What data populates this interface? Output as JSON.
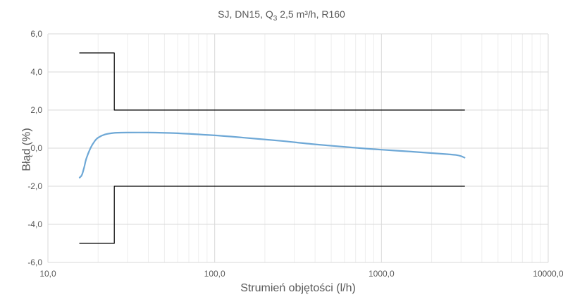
{
  "chart_data": {
    "type": "line",
    "title_main": "SJ, DN15, Q",
    "title_sub": "3",
    "title_rest": " 2,5 m³/h, R160",
    "xlabel": "Strumień objętości (l/h)",
    "ylabel": "Błąd (%)",
    "x_scale": "log",
    "xlim": [
      10,
      10000
    ],
    "ylim": [
      -6,
      6
    ],
    "x_ticks": [
      10,
      100,
      1000,
      10000
    ],
    "x_tick_labels": [
      "10,0",
      "100,0",
      "1000,0",
      "10000,0"
    ],
    "y_ticks": [
      6,
      4,
      2,
      0,
      -2,
      -4,
      -6
    ],
    "y_tick_labels": [
      "6,0",
      "4,0",
      "2,0",
      "0,0",
      "-2,0",
      "-4,0",
      "-6,0"
    ],
    "grid": true,
    "series": [
      {
        "color": "#6ea8d6",
        "x": [
          15.5,
          16,
          16.5,
          17,
          18,
          19,
          20,
          22,
          25,
          30,
          40,
          60,
          100,
          150,
          250,
          400,
          700,
          1000,
          1500,
          2000,
          2500,
          2800,
          3000,
          3150
        ],
        "y": [
          -1.55,
          -1.4,
          -1.0,
          -0.55,
          0.0,
          0.35,
          0.55,
          0.72,
          0.8,
          0.82,
          0.82,
          0.78,
          0.67,
          0.55,
          0.38,
          0.2,
          0.02,
          -0.08,
          -0.18,
          -0.26,
          -0.32,
          -0.36,
          -0.42,
          -0.5
        ]
      }
    ],
    "mpe_upper": {
      "color": "#000000",
      "x": [
        15.5,
        25,
        25,
        3150
      ],
      "y": [
        5,
        5,
        2,
        2
      ]
    },
    "mpe_lower": {
      "color": "#000000",
      "x": [
        15.5,
        25,
        25,
        3150
      ],
      "y": [
        -5,
        -5,
        -2,
        -2
      ]
    }
  }
}
